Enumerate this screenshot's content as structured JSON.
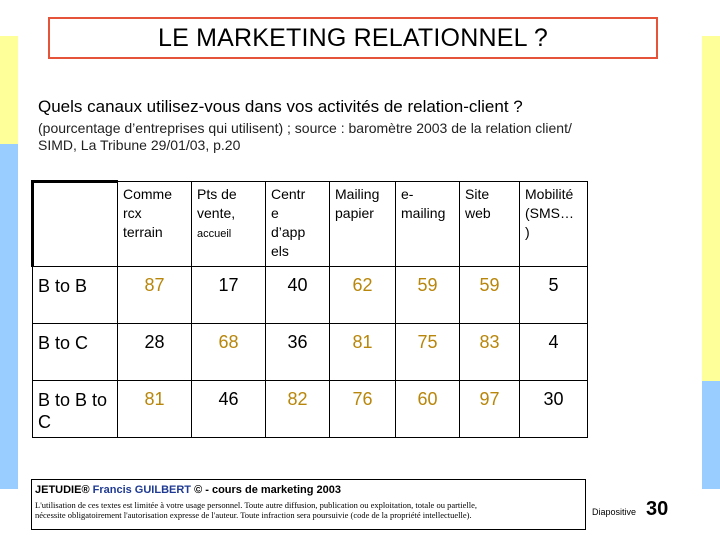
{
  "slide": {
    "title": "LE MARKETING RELATIONNEL ?",
    "question": "Quels canaux utilisez-vous dans vos activités de relation-client ?",
    "source_line1": "(pourcentage d’entreprises qui utilisent) ; source : baromètre 2003 de la relation client/",
    "source_line2": "SIMD, La Tribune 29/01/03, p.20"
  },
  "table": {
    "headers": [
      {
        "lines": [
          "Comme",
          "rcx",
          "terrain"
        ],
        "small": ""
      },
      {
        "lines": [
          "Pts  de",
          "vente,"
        ],
        "small": "accueil"
      },
      {
        "lines": [
          "Centr",
          "e",
          "d’app",
          "els"
        ],
        "small": ""
      },
      {
        "lines": [
          "Mailing",
          "papier"
        ],
        "small": ""
      },
      {
        "lines": [
          "e-",
          "mailing"
        ],
        "small": ""
      },
      {
        "lines": [
          "Site",
          "web"
        ],
        "small": ""
      },
      {
        "lines": [
          "Mobilité",
          "(SMS…",
          ")"
        ],
        "small": ""
      }
    ],
    "rows": [
      {
        "label": "B to B",
        "values": [
          "87",
          "17",
          "40",
          "62",
          "59",
          "59",
          "5"
        ]
      },
      {
        "label": "B to C",
        "values": [
          "28",
          "68",
          "36",
          "81",
          "75",
          "83",
          "4"
        ]
      },
      {
        "label": "B to B to C",
        "values": [
          "81",
          "46",
          "82",
          "76",
          "60",
          "97",
          "30"
        ]
      }
    ]
  },
  "colors": {
    "highlight_value": "#b8860b",
    "normal_value": "#000000",
    "title_border": "#e5533b"
  },
  "highlighted_cells": {
    "B to B": [
      0,
      3,
      4,
      5
    ],
    "B to C": [
      1,
      3,
      4,
      5
    ],
    "B to B to C": [
      0,
      2,
      3,
      4,
      5
    ]
  },
  "footer": {
    "credit_prefix": "JETUDIE® ",
    "credit_author": "Francis GUILBERT",
    "credit_suffix": " © - cours de marketing 2003",
    "legal_line1": "L'utilisation de ces textes est limitée à votre usage personnel. Toute autre diffusion, publication ou exploitation, totale ou partielle,",
    "legal_line2": "nécessite obligatoirement l'autorisation expresse de l'auteur. Toute infraction sera poursuivie (code de la propriété intellectuelle)."
  },
  "slide_label": "Diapositive",
  "slide_number": "30"
}
